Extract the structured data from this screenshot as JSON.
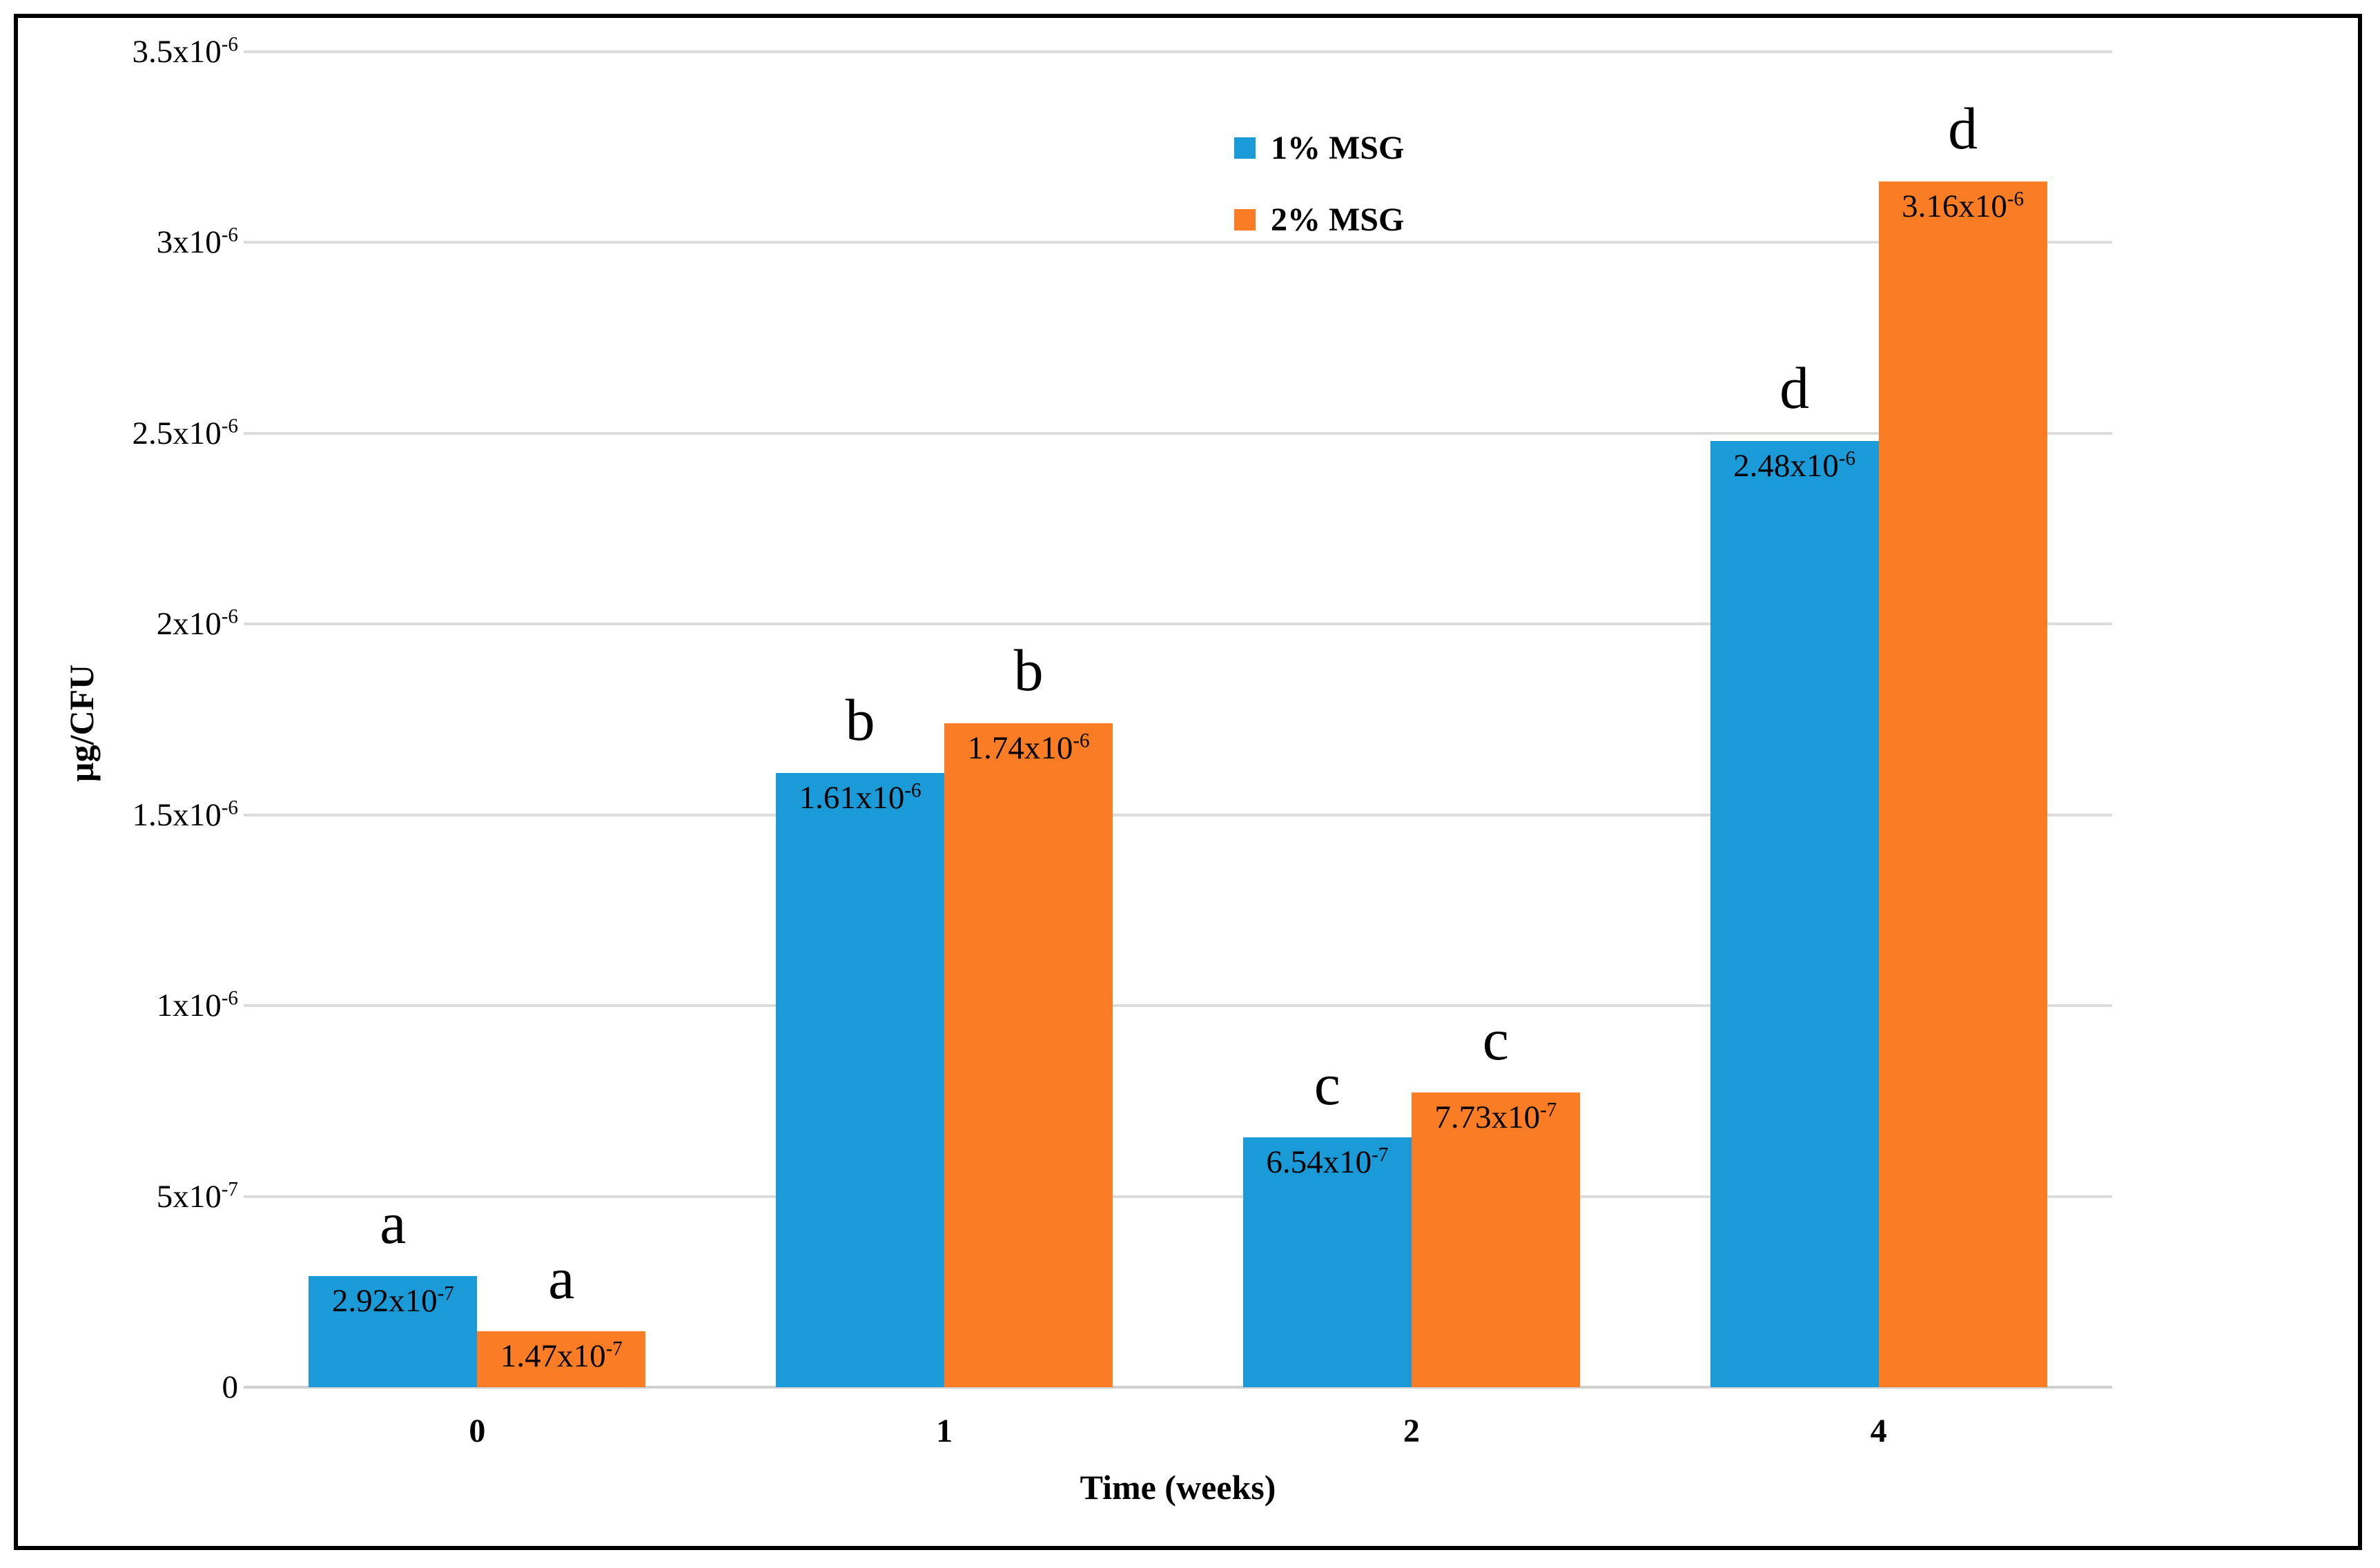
{
  "figure": {
    "y_axis_title": "µg/CFU",
    "x_axis_title": "Time (weeks)"
  },
  "chart_data": {
    "type": "bar",
    "title": "",
    "xlabel": "Time (weeks)",
    "ylabel": "µg/CFU",
    "categories": [
      "0",
      "1",
      "2",
      "4"
    ],
    "ylim": [
      0,
      3.5e-06
    ],
    "y_tick_step": 5e-07,
    "grid": "horizontal-gridlines",
    "legend_position": "top-center",
    "gridline_color": "#dcdcdc",
    "y_ticks": [
      {
        "value": 0,
        "base": "0",
        "exp": ""
      },
      {
        "value": 5e-07,
        "base": "5x10",
        "exp": "-7"
      },
      {
        "value": 1e-06,
        "base": "1x10",
        "exp": "-6"
      },
      {
        "value": 1.5e-06,
        "base": "1.5x10",
        "exp": "-6"
      },
      {
        "value": 2e-06,
        "base": "2x10",
        "exp": "-6"
      },
      {
        "value": 2.5e-06,
        "base": "2.5x10",
        "exp": "-6"
      },
      {
        "value": 3e-06,
        "base": "3x10",
        "exp": "-6"
      },
      {
        "value": 3.5e-06,
        "base": "3.5x10",
        "exp": "-6"
      }
    ],
    "series": [
      {
        "name": "1% MSG",
        "color": "#1a9ad7",
        "values": [
          2.92e-07,
          1.61e-06,
          6.54e-07,
          2.48e-06
        ],
        "data_labels": [
          {
            "base": "2.92x10",
            "exp": "-7"
          },
          {
            "base": "1.61x10",
            "exp": "-6"
          },
          {
            "base": "6.54x10",
            "exp": "-7"
          },
          {
            "base": "2.48x10",
            "exp": "-6"
          }
        ],
        "sig_letters": [
          "a",
          "b",
          "c",
          "d"
        ]
      },
      {
        "name": "2% MSG",
        "color": "#fa7d26",
        "values": [
          1.47e-07,
          1.74e-06,
          7.73e-07,
          3.16e-06
        ],
        "data_labels": [
          {
            "base": "1.47x10",
            "exp": "-7"
          },
          {
            "base": "1.74x10",
            "exp": "-6"
          },
          {
            "base": "7.73x10",
            "exp": "-7"
          },
          {
            "base": "3.16x10",
            "exp": "-6"
          }
        ],
        "sig_letters": [
          "a",
          "b",
          "c",
          "d"
        ]
      }
    ]
  }
}
